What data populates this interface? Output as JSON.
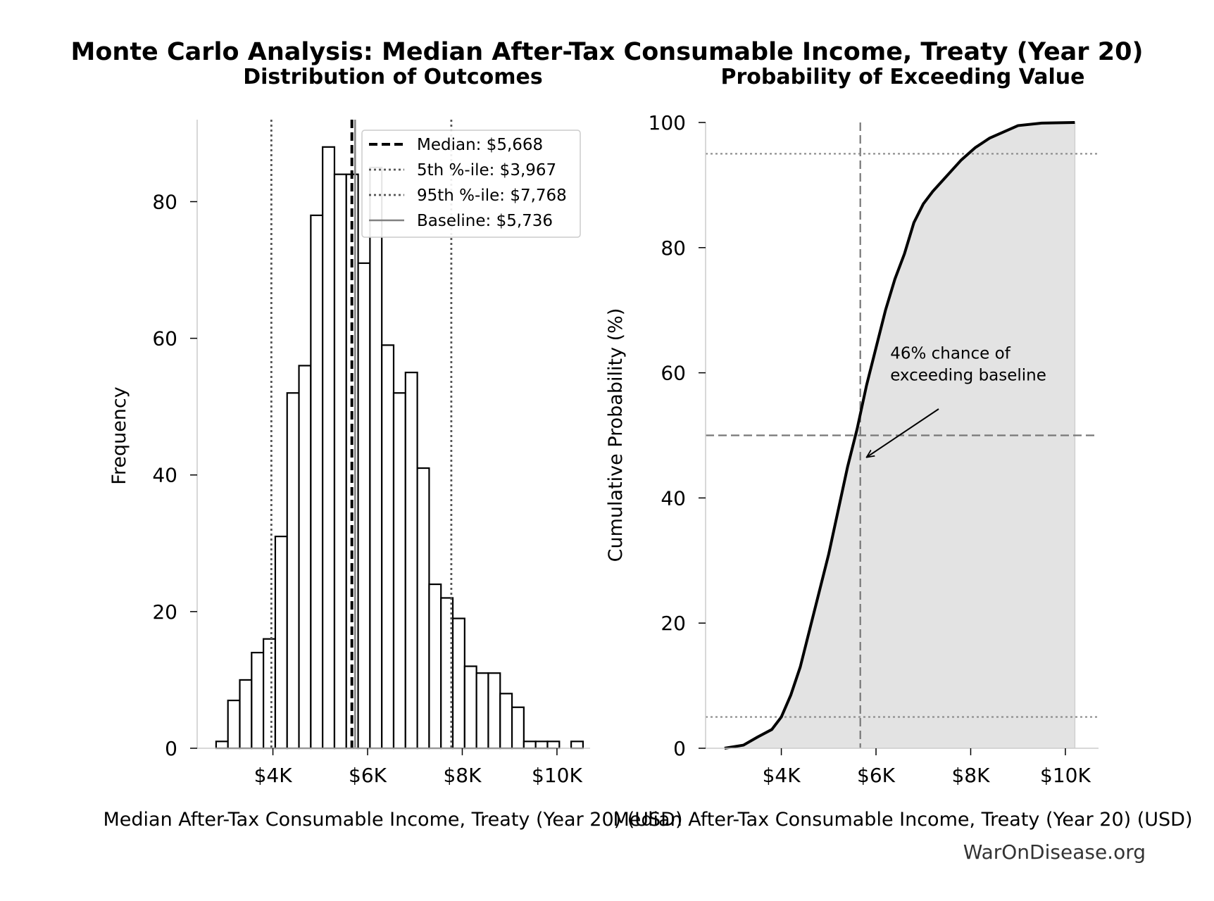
{
  "figure": {
    "suptitle": "Monte Carlo Analysis: Median After-Tax Consumable Income, Treaty (Year 20)",
    "watermark": "WarOnDisease.org"
  },
  "chart_data": [
    {
      "type": "bar",
      "subtype": "histogram",
      "title": "Distribution of Outcomes",
      "xlabel": "Median After-Tax Consumable Income, Treaty (Year 20) (USD)",
      "ylabel": "Frequency",
      "xlim": [
        2400,
        10700
      ],
      "ylim": [
        0,
        92
      ],
      "xticks": [
        4000,
        6000,
        8000,
        10000
      ],
      "xtick_labels": [
        "$4K",
        "$6K",
        "$8K",
        "$10K"
      ],
      "yticks": [
        0,
        20,
        40,
        60,
        80
      ],
      "bin_width": 250,
      "bins": [
        {
          "x0": 2800,
          "count": 1
        },
        {
          "x0": 3050,
          "count": 7
        },
        {
          "x0": 3300,
          "count": 10
        },
        {
          "x0": 3550,
          "count": 14
        },
        {
          "x0": 3800,
          "count": 16
        },
        {
          "x0": 4050,
          "count": 31
        },
        {
          "x0": 4300,
          "count": 52
        },
        {
          "x0": 4550,
          "count": 56
        },
        {
          "x0": 4800,
          "count": 78
        },
        {
          "x0": 5050,
          "count": 88
        },
        {
          "x0": 5300,
          "count": 84
        },
        {
          "x0": 5550,
          "count": 84
        },
        {
          "x0": 5800,
          "count": 71
        },
        {
          "x0": 6050,
          "count": 85
        },
        {
          "x0": 6300,
          "count": 59
        },
        {
          "x0": 6550,
          "count": 52
        },
        {
          "x0": 6800,
          "count": 55
        },
        {
          "x0": 7050,
          "count": 41
        },
        {
          "x0": 7300,
          "count": 24
        },
        {
          "x0": 7550,
          "count": 22
        },
        {
          "x0": 7800,
          "count": 19
        },
        {
          "x0": 8050,
          "count": 12
        },
        {
          "x0": 8300,
          "count": 11
        },
        {
          "x0": 8550,
          "count": 11
        },
        {
          "x0": 8800,
          "count": 8
        },
        {
          "x0": 9050,
          "count": 6
        },
        {
          "x0": 9300,
          "count": 1
        },
        {
          "x0": 9550,
          "count": 1
        },
        {
          "x0": 9800,
          "count": 1
        },
        {
          "x0": 10300,
          "count": 1
        }
      ],
      "reference_lines": [
        {
          "label": "Median: $5,668",
          "value": 5668,
          "style": "dashed",
          "color": "#000000"
        },
        {
          "label": "5th %-ile: $3,967",
          "value": 3967,
          "style": "dotted",
          "color": "#555555"
        },
        {
          "label": "95th %-ile: $7,768",
          "value": 7768,
          "style": "dotted",
          "color": "#555555"
        },
        {
          "label": "Baseline: $5,736",
          "value": 5736,
          "style": "solid",
          "color": "#808080"
        }
      ],
      "legend_position": "top-right",
      "grid": false
    },
    {
      "type": "area",
      "title": "Probability of Exceeding Value",
      "xlabel": "Median After-Tax Consumable Income, Treaty (Year 20) (USD)",
      "ylabel": "Cumulative Probability (%)",
      "xlim": [
        2400,
        10700
      ],
      "ylim": [
        0,
        100
      ],
      "xticks": [
        4000,
        6000,
        8000,
        10000
      ],
      "xtick_labels": [
        "$4K",
        "$6K",
        "$8K",
        "$10K"
      ],
      "yticks": [
        0,
        20,
        40,
        60,
        80,
        100
      ],
      "x": [
        2800,
        3200,
        3500,
        3800,
        4000,
        4200,
        4400,
        4600,
        4800,
        5000,
        5200,
        5400,
        5600,
        5800,
        6000,
        6200,
        6400,
        6600,
        6800,
        7000,
        7200,
        7500,
        7800,
        8100,
        8400,
        8700,
        9000,
        9500,
        10200
      ],
      "y": [
        0,
        0.5,
        1.8,
        3,
        5,
        8.5,
        13,
        19,
        25,
        31,
        38,
        45,
        51,
        58,
        64,
        70,
        75,
        79,
        84,
        87,
        89,
        91.5,
        94,
        96,
        97.5,
        98.5,
        99.5,
        99.9,
        100
      ],
      "reference_lines": [
        {
          "orientation": "vertical",
          "value": 5668,
          "style": "dashed"
        },
        {
          "orientation": "horizontal",
          "value": 50,
          "style": "dashed"
        },
        {
          "orientation": "horizontal",
          "value": 5,
          "style": "dotted"
        },
        {
          "orientation": "horizontal",
          "value": 95,
          "style": "dotted"
        }
      ],
      "annotation": {
        "lines": [
          "46% chance of",
          "exceeding baseline"
        ],
        "text_x": 6300,
        "text_y": 60,
        "arrow_to_x": 5800,
        "arrow_to_y": 46.5
      },
      "fill_color": "#e3e3e3",
      "grid": false
    }
  ]
}
